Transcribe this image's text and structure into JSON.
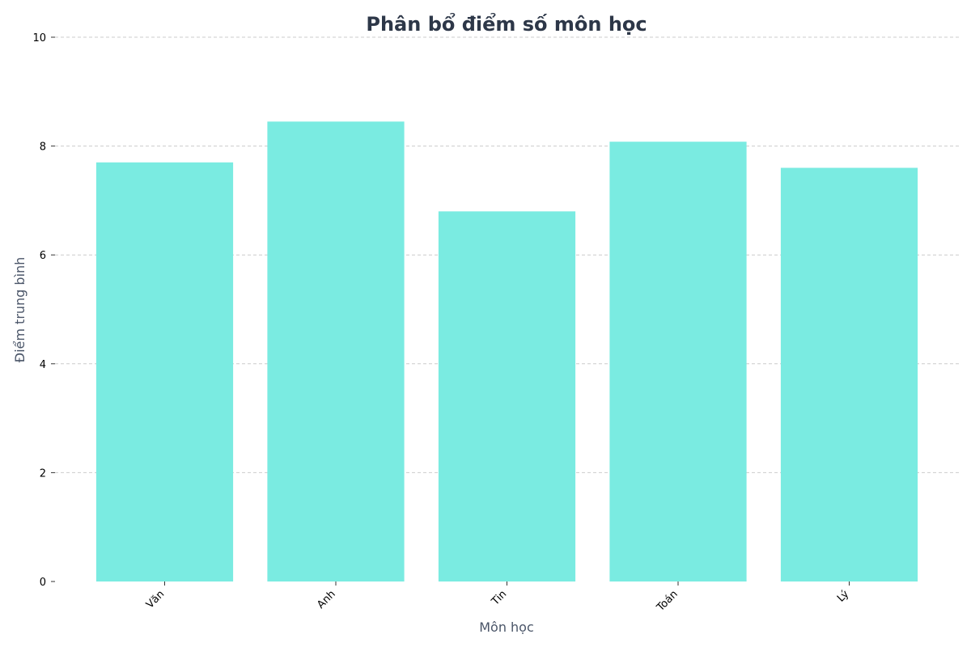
{
  "chart_data": {
    "type": "bar",
    "title": "Phân bổ điểm số môn học",
    "xlabel": "Môn học",
    "ylabel": "Điểm trung bình",
    "categories": [
      "Văn",
      "Anh",
      "Tin",
      "Toán",
      "Lý"
    ],
    "values": [
      7.7,
      8.45,
      6.8,
      8.08,
      7.6
    ],
    "ylim": [
      0,
      10
    ],
    "yticks": [
      0,
      2,
      4,
      6,
      8,
      10
    ],
    "grid": true,
    "bar_color": "#7aebe1"
  }
}
